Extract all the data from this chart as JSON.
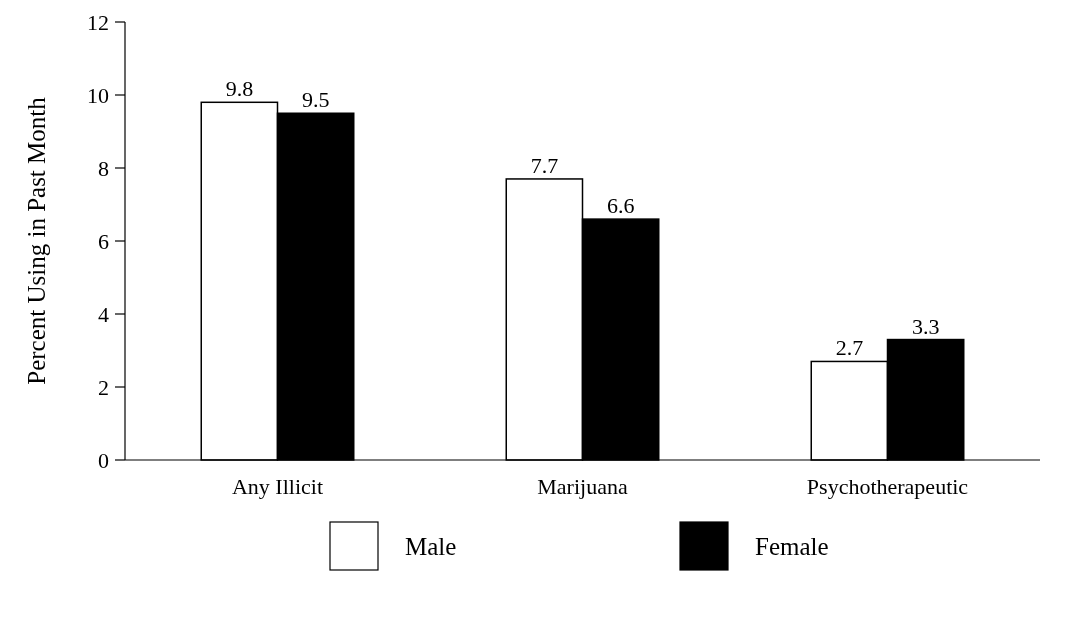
{
  "chart_data": {
    "type": "bar",
    "ylabel": "Percent Using in Past Month",
    "categories": [
      "Any Illicit",
      "Marijuana",
      "Psychotherapeutic"
    ],
    "series": [
      {
        "name": "Male",
        "color": "#ffffff",
        "values": [
          9.8,
          7.7,
          2.7
        ]
      },
      {
        "name": "Female",
        "color": "#000000",
        "values": [
          9.5,
          6.6,
          3.3
        ]
      }
    ],
    "ylim": [
      0,
      12
    ],
    "yticks": [
      0,
      2,
      4,
      6,
      8,
      10,
      12
    ],
    "grid": false,
    "legend": "bottom",
    "data_labels": true
  }
}
